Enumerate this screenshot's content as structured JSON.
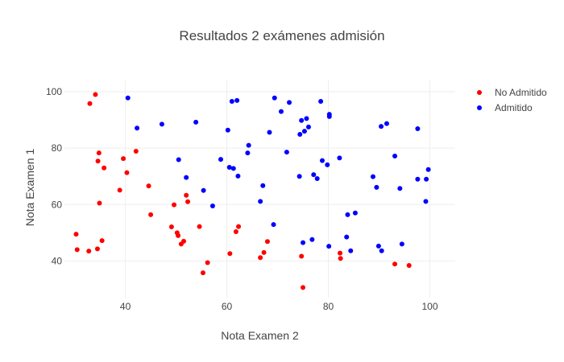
{
  "chart_data": {
    "type": "scatter",
    "title": "Resultados 2 exámenes admisión",
    "xlabel": "Nota Examen 2",
    "ylabel": "Nota Examen 1",
    "xlim": [
      28,
      105
    ],
    "ylim": [
      27,
      104
    ],
    "xticks": [
      40,
      60,
      80,
      100
    ],
    "yticks": [
      40,
      60,
      80,
      100
    ],
    "grid": true,
    "legend_position": "top-right",
    "series": [
      {
        "name": "No Admitido",
        "color": "#ff0000",
        "points": [
          [
            30.3,
            49.5
          ],
          [
            30.5,
            44.0
          ],
          [
            32.8,
            43.5
          ],
          [
            33.0,
            95.8
          ],
          [
            34.1,
            99.0
          ],
          [
            34.5,
            44.3
          ],
          [
            34.6,
            75.4
          ],
          [
            34.8,
            78.3
          ],
          [
            34.9,
            60.5
          ],
          [
            35.4,
            47.2
          ],
          [
            35.8,
            73.0
          ],
          [
            38.9,
            65.1
          ],
          [
            39.6,
            76.3
          ],
          [
            40.3,
            71.3
          ],
          [
            42.1,
            78.9
          ],
          [
            44.6,
            66.6
          ],
          [
            45.0,
            56.4
          ],
          [
            49.1,
            52.1
          ],
          [
            49.6,
            59.9
          ],
          [
            50.2,
            50.0
          ],
          [
            50.4,
            49.0
          ],
          [
            51.0,
            46.0
          ],
          [
            51.5,
            47.0
          ],
          [
            52.0,
            63.3
          ],
          [
            52.3,
            61.0
          ],
          [
            54.6,
            52.2
          ],
          [
            55.3,
            35.8
          ],
          [
            56.2,
            39.4
          ],
          [
            60.6,
            42.6
          ],
          [
            61.8,
            50.4
          ],
          [
            62.3,
            52.2
          ],
          [
            66.6,
            41.2
          ],
          [
            67.3,
            43.0
          ],
          [
            68.0,
            46.9
          ],
          [
            74.7,
            41.7
          ],
          [
            75.0,
            30.6
          ],
          [
            82.3,
            42.8
          ],
          [
            82.4,
            40.9
          ],
          [
            93.1,
            38.9
          ],
          [
            95.9,
            38.4
          ]
        ]
      },
      {
        "name": "Admitido",
        "color": "#0000ff",
        "points": [
          [
            40.5,
            97.8
          ],
          [
            42.3,
            87.1
          ],
          [
            47.2,
            88.5
          ],
          [
            50.5,
            75.9
          ],
          [
            52.0,
            69.6
          ],
          [
            53.9,
            89.2
          ],
          [
            55.4,
            65.0
          ],
          [
            57.2,
            59.5
          ],
          [
            58.8,
            76.0
          ],
          [
            60.2,
            86.4
          ],
          [
            60.5,
            73.2
          ],
          [
            61.0,
            96.6
          ],
          [
            61.3,
            72.8
          ],
          [
            62.0,
            96.9
          ],
          [
            62.2,
            70.1
          ],
          [
            64.1,
            78.3
          ],
          [
            64.3,
            81.0
          ],
          [
            66.6,
            61.1
          ],
          [
            67.1,
            66.7
          ],
          [
            68.4,
            85.6
          ],
          [
            69.2,
            52.9
          ],
          [
            69.4,
            97.8
          ],
          [
            70.7,
            93.0
          ],
          [
            71.8,
            78.6
          ],
          [
            72.3,
            96.2
          ],
          [
            74.3,
            70.0
          ],
          [
            74.4,
            84.9
          ],
          [
            74.7,
            89.8
          ],
          [
            75.0,
            46.5
          ],
          [
            75.3,
            86.0
          ],
          [
            75.7,
            90.5
          ],
          [
            76.1,
            87.5
          ],
          [
            76.8,
            47.6
          ],
          [
            77.1,
            70.6
          ],
          [
            77.8,
            69.2
          ],
          [
            78.5,
            96.6
          ],
          [
            78.8,
            75.6
          ],
          [
            79.8,
            74.1
          ],
          [
            80.1,
            45.2
          ],
          [
            80.2,
            92.0
          ],
          [
            80.2,
            91.2
          ],
          [
            82.2,
            76.5
          ],
          [
            83.6,
            48.5
          ],
          [
            83.8,
            56.4
          ],
          [
            84.4,
            43.6
          ],
          [
            85.3,
            57.0
          ],
          [
            88.8,
            69.9
          ],
          [
            89.5,
            66.1
          ],
          [
            89.9,
            45.3
          ],
          [
            90.4,
            87.7
          ],
          [
            90.5,
            43.6
          ],
          [
            91.5,
            88.7
          ],
          [
            93.1,
            77.2
          ],
          [
            94.1,
            65.7
          ],
          [
            94.5,
            46.0
          ],
          [
            97.6,
            86.9
          ],
          [
            97.6,
            69.0
          ],
          [
            99.2,
            61.1
          ],
          [
            99.3,
            69.0
          ],
          [
            99.7,
            72.4
          ]
        ]
      }
    ]
  }
}
